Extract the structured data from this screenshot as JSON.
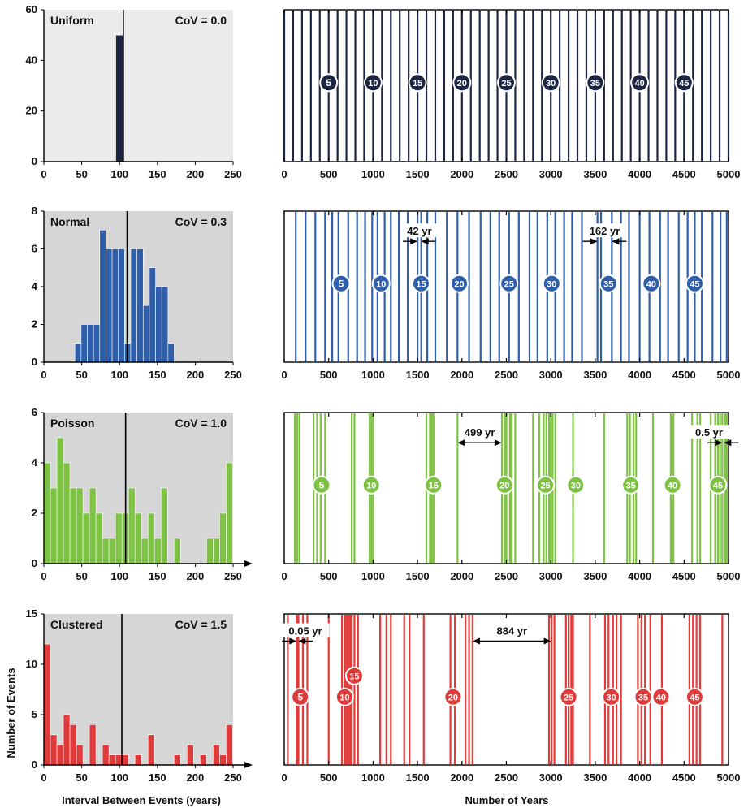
{
  "labels": {
    "ylabel": "Number of Events",
    "xlabel_hist": "Interval Between Events (years)",
    "xlabel_time": "Number of Years"
  },
  "chart_data": [
    {
      "type": "bar",
      "name": "Uniform",
      "cov_text": "CoV = 0.0",
      "color": "#1c2541",
      "bg": "#ebebeb",
      "bin_width": 10,
      "xlim": [
        0,
        250
      ],
      "ylim": [
        0,
        60
      ],
      "xticks": [
        0,
        50,
        100,
        150,
        200,
        250
      ],
      "yticks": [
        0,
        20,
        40,
        60
      ],
      "mean_line": 105,
      "bins": [
        {
          "x": 95,
          "count": 50
        }
      ]
    },
    {
      "type": "bar",
      "name": "Normal",
      "cov_text": "CoV = 0.3",
      "color": "#2f5faa",
      "bg": "#d6d6d6",
      "bin_width": 8.2,
      "xlim": [
        0,
        250
      ],
      "ylim": [
        0,
        8
      ],
      "xticks": [
        0,
        50,
        100,
        150,
        200,
        250
      ],
      "yticks": [
        0,
        2,
        4,
        6,
        8
      ],
      "mean_line": 110,
      "bins": [
        {
          "x": 41,
          "count": 1
        },
        {
          "x": 49.2,
          "count": 2
        },
        {
          "x": 57.4,
          "count": 2
        },
        {
          "x": 65.6,
          "count": 2
        },
        {
          "x": 73.8,
          "count": 7
        },
        {
          "x": 82,
          "count": 6
        },
        {
          "x": 90.2,
          "count": 6
        },
        {
          "x": 98.4,
          "count": 6
        },
        {
          "x": 106.6,
          "count": 1
        },
        {
          "x": 114.8,
          "count": 6
        },
        {
          "x": 123,
          "count": 6
        },
        {
          "x": 131.2,
          "count": 3
        },
        {
          "x": 139.4,
          "count": 5
        },
        {
          "x": 147.6,
          "count": 4
        },
        {
          "x": 155.8,
          "count": 4
        },
        {
          "x": 164,
          "count": 1
        }
      ]
    },
    {
      "type": "bar",
      "name": "Poisson",
      "cov_text": "CoV = 1.0",
      "color": "#7dc242",
      "bg": "#d6d6d6",
      "bin_width": 8.6,
      "xlim": [
        0,
        250
      ],
      "ylim": [
        0,
        6
      ],
      "xticks": [
        0,
        50,
        100,
        150,
        200,
        250
      ],
      "yticks": [
        0,
        2,
        4,
        6
      ],
      "mean_line": 108,
      "bins": [
        {
          "x": 0,
          "count": 4
        },
        {
          "x": 8.6,
          "count": 3
        },
        {
          "x": 17.2,
          "count": 5
        },
        {
          "x": 25.8,
          "count": 4
        },
        {
          "x": 34.4,
          "count": 3
        },
        {
          "x": 43,
          "count": 3
        },
        {
          "x": 51.6,
          "count": 2
        },
        {
          "x": 60.2,
          "count": 3
        },
        {
          "x": 68.8,
          "count": 2
        },
        {
          "x": 77.4,
          "count": 1
        },
        {
          "x": 86,
          "count": 1
        },
        {
          "x": 94.6,
          "count": 2
        },
        {
          "x": 103.2,
          "count": 2
        },
        {
          "x": 111.8,
          "count": 3
        },
        {
          "x": 120.4,
          "count": 2
        },
        {
          "x": 129,
          "count": 1
        },
        {
          "x": 137.6,
          "count": 2
        },
        {
          "x": 146.2,
          "count": 1
        },
        {
          "x": 154.8,
          "count": 3
        },
        {
          "x": 172,
          "count": 1
        },
        {
          "x": 215,
          "count": 1
        },
        {
          "x": 223.6,
          "count": 1
        },
        {
          "x": 232.2,
          "count": 2
        },
        {
          "x": 240.8,
          "count": 4
        }
      ]
    },
    {
      "type": "bar",
      "name": "Clustered",
      "cov_text": "CoV = 1.5",
      "color": "#e03a3a",
      "bg": "#d6d6d6",
      "bin_width": 8.6,
      "xlim": [
        0,
        250
      ],
      "ylim": [
        0,
        15
      ],
      "xticks": [
        0,
        50,
        100,
        150,
        200,
        250
      ],
      "yticks": [
        0,
        5,
        10,
        15
      ],
      "mean_line": 103,
      "bins": [
        {
          "x": 0,
          "count": 12
        },
        {
          "x": 8.6,
          "count": 3
        },
        {
          "x": 17.2,
          "count": 2
        },
        {
          "x": 25.8,
          "count": 5
        },
        {
          "x": 34.4,
          "count": 4
        },
        {
          "x": 43,
          "count": 2
        },
        {
          "x": 60.2,
          "count": 4
        },
        {
          "x": 77.4,
          "count": 2
        },
        {
          "x": 86,
          "count": 1
        },
        {
          "x": 94.6,
          "count": 1
        },
        {
          "x": 103.2,
          "count": 1
        },
        {
          "x": 120.4,
          "count": 1
        },
        {
          "x": 137.6,
          "count": 3
        },
        {
          "x": 172,
          "count": 1
        },
        {
          "x": 189.2,
          "count": 2
        },
        {
          "x": 206.4,
          "count": 1
        },
        {
          "x": 223.6,
          "count": 2
        },
        {
          "x": 232.2,
          "count": 1
        },
        {
          "x": 240.8,
          "count": 4
        }
      ]
    },
    {
      "type": "timeline",
      "name": "Uniform timeline",
      "color": "#1c2541",
      "xlim": [
        0,
        5000
      ],
      "xticks": [
        0,
        500,
        1000,
        1500,
        2000,
        2500,
        3000,
        3500,
        4000,
        4500,
        5000
      ],
      "events": [
        0,
        100,
        200,
        300,
        400,
        500,
        600,
        700,
        800,
        900,
        1000,
        1100,
        1200,
        1300,
        1400,
        1500,
        1600,
        1700,
        1800,
        1900,
        2000,
        2100,
        2200,
        2300,
        2400,
        2500,
        2600,
        2700,
        2800,
        2900,
        3000,
        3100,
        3200,
        3300,
        3400,
        3500,
        3600,
        3700,
        3800,
        3900,
        4000,
        4100,
        4200,
        4300,
        4400,
        4500,
        4600,
        4700,
        4800,
        4900,
        5000
      ],
      "markers": [
        {
          "label": "5",
          "x": 500
        },
        {
          "label": "10",
          "x": 1000
        },
        {
          "label": "15",
          "x": 1500
        },
        {
          "label": "20",
          "x": 2000
        },
        {
          "label": "25",
          "x": 2500
        },
        {
          "label": "30",
          "x": 3000
        },
        {
          "label": "35",
          "x": 3500
        },
        {
          "label": "40",
          "x": 4000
        },
        {
          "label": "45",
          "x": 4500
        }
      ],
      "marker_level": 0.52,
      "annotations": []
    },
    {
      "type": "timeline",
      "name": "Normal timeline",
      "color": "#2f5faa",
      "xlim": [
        0,
        5000
      ],
      "xticks": [
        0,
        500,
        1000,
        1500,
        2000,
        2500,
        3000,
        3500,
        4000,
        4500,
        5000
      ],
      "events": [
        130,
        240,
        350,
        460,
        540,
        610,
        720,
        820,
        910,
        990,
        1050,
        1130,
        1200,
        1290,
        1390,
        1500,
        1542,
        1610,
        1700,
        1830,
        1950,
        2080,
        2210,
        2320,
        2420,
        2530,
        2640,
        2760,
        2850,
        2960,
        3050,
        3150,
        3240,
        3350,
        3525,
        3565,
        3687,
        3790,
        3880,
        4000,
        4110,
        4230,
        4320,
        4440,
        4540,
        4620,
        4700,
        4820,
        4910,
        4980
      ],
      "markers": [
        {
          "label": "5",
          "x": 640
        },
        {
          "label": "10",
          "x": 1090
        },
        {
          "label": "15",
          "x": 1540
        },
        {
          "label": "20",
          "x": 1970
        },
        {
          "label": "25",
          "x": 2530
        },
        {
          "label": "30",
          "x": 3010
        },
        {
          "label": "35",
          "x": 3650
        },
        {
          "label": "40",
          "x": 4130
        },
        {
          "label": "45",
          "x": 4620
        }
      ],
      "marker_level": 0.52,
      "annotations": [
        {
          "text": "42 yr",
          "x1": 1500,
          "x2": 1542,
          "level": 0.8
        },
        {
          "text": "162 yr",
          "x1": 3525,
          "x2": 3687,
          "level": 0.8
        }
      ]
    },
    {
      "type": "timeline",
      "name": "Poisson timeline",
      "color": "#7dc242",
      "xlim": [
        0,
        5000
      ],
      "xticks": [
        0,
        500,
        1000,
        1500,
        2000,
        2500,
        3000,
        3500,
        4000,
        4500,
        5000
      ],
      "events": [
        120,
        145,
        170,
        330,
        370,
        410,
        460,
        760,
        790,
        960,
        980,
        1000,
        1600,
        1640,
        1660,
        1680,
        1950,
        2450,
        2480,
        2500,
        2540,
        2560,
        2600,
        2800,
        2870,
        2920,
        2950,
        2980,
        3000,
        3020,
        3050,
        3250,
        3600,
        3860,
        3890,
        3930,
        3960,
        4150,
        4350,
        4380,
        4590,
        4650,
        4680,
        4800,
        4850,
        4880,
        4905,
        4930,
        4965,
        4980
      ],
      "markers": [
        {
          "label": "5",
          "x": 420
        },
        {
          "label": "10",
          "x": 980
        },
        {
          "label": "15",
          "x": 1680
        },
        {
          "label": "20",
          "x": 2480
        },
        {
          "label": "25",
          "x": 2940
        },
        {
          "label": "30",
          "x": 3280
        },
        {
          "label": "35",
          "x": 3900
        },
        {
          "label": "40",
          "x": 4370
        },
        {
          "label": "45",
          "x": 4880
        }
      ],
      "marker_level": 0.52,
      "annotations": [
        {
          "text": "499 yr",
          "x1": 1950,
          "x2": 2449,
          "level": 0.8
        },
        {
          "text": "0.5 yr",
          "x1": 4930,
          "x2": 4930.5,
          "level": 0.8
        }
      ]
    },
    {
      "type": "timeline",
      "name": "Clustered timeline",
      "color": "#e03a3a",
      "xlim": [
        0,
        5000
      ],
      "xticks": [
        0,
        500,
        1000,
        1500,
        2000,
        2500,
        3000,
        3500,
        4000,
        4500,
        5000
      ],
      "events": [
        40,
        140,
        145,
        160,
        210,
        260,
        500,
        650,
        680,
        690,
        710,
        720,
        740,
        760,
        790,
        830,
        1080,
        1150,
        1200,
        1350,
        1410,
        1570,
        1870,
        1920,
        2040,
        2080,
        2120,
        2980,
        3010,
        3040,
        3170,
        3200,
        3230,
        3250,
        3440,
        3610,
        3650,
        3700,
        3740,
        3790,
        3980,
        4020,
        4060,
        4120,
        4250,
        4560,
        4600,
        4640,
        4680,
        4930
      ],
      "markers": [
        {
          "label": "5",
          "x": 180
        },
        {
          "label": "10",
          "x": 680
        },
        {
          "label": "15",
          "x": 790
        },
        {
          "label": "20",
          "x": 1900
        },
        {
          "label": "25",
          "x": 3200
        },
        {
          "label": "30",
          "x": 3680
        },
        {
          "label": "35",
          "x": 4040
        },
        {
          "label": "40",
          "x": 4240
        },
        {
          "label": "45",
          "x": 4620
        }
      ],
      "marker_level": 0.45,
      "marker_offsets": {
        "15": 0.14
      },
      "annotations": [
        {
          "text": "0.05 yr",
          "x1": 140,
          "x2": 140.05,
          "level": 0.82
        },
        {
          "text": "884 yr",
          "x1": 2120,
          "x2": 3004,
          "level": 0.82
        }
      ]
    }
  ]
}
